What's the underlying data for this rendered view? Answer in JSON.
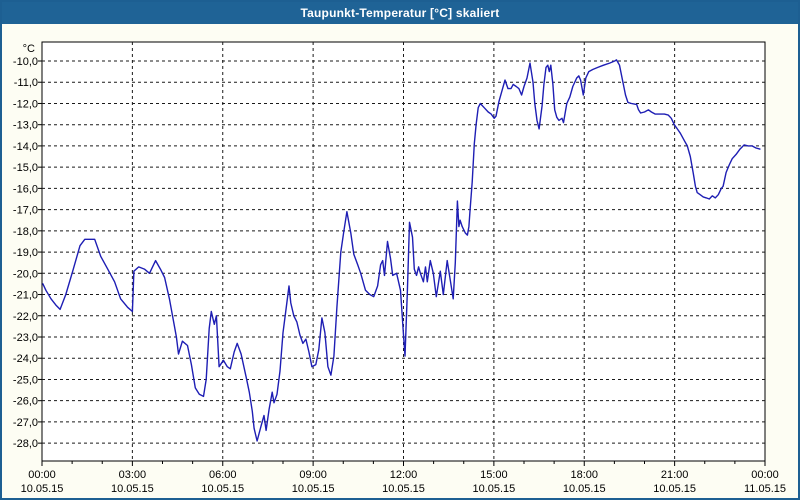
{
  "window": {
    "title": "Taupunkt-Temperatur [°C] skaliert"
  },
  "colors": {
    "titlebar": "#1f6396",
    "frame": "#1d5f92",
    "background": "#fdfdf3",
    "plot_background": "#ffffff",
    "plot_border": "#000000",
    "grid": "#1a1a1a",
    "line": "#1e1eb4",
    "text": "#000000"
  },
  "chart_data": {
    "type": "line",
    "title": "Taupunkt-Temperatur [°C] skaliert",
    "ylabel": "°C",
    "xlabel": "",
    "ylim": [
      -28.9,
      -9.1
    ],
    "xlim_hours": [
      0,
      24
    ],
    "grid": true,
    "legend": false,
    "y_ticks": [
      {
        "value": -10,
        "label": "-10,0"
      },
      {
        "value": -11,
        "label": "-11,0"
      },
      {
        "value": -12,
        "label": "-12,0"
      },
      {
        "value": -13,
        "label": "-13,0"
      },
      {
        "value": -14,
        "label": "-14,0"
      },
      {
        "value": -15,
        "label": "-15,0"
      },
      {
        "value": -16,
        "label": "-16,0"
      },
      {
        "value": -17,
        "label": "-17,0"
      },
      {
        "value": -18,
        "label": "-18,0"
      },
      {
        "value": -19,
        "label": "-19,0"
      },
      {
        "value": -20,
        "label": "-20,0"
      },
      {
        "value": -21,
        "label": "-21,0"
      },
      {
        "value": -22,
        "label": "-22,0"
      },
      {
        "value": -23,
        "label": "-23,0"
      },
      {
        "value": -24,
        "label": "-24,0"
      },
      {
        "value": -25,
        "label": "-25,0"
      },
      {
        "value": -26,
        "label": "-26,0"
      },
      {
        "value": -27,
        "label": "-27,0"
      },
      {
        "value": -28,
        "label": "-28,0"
      }
    ],
    "x_ticks": [
      {
        "hour": 0,
        "time": "00:00",
        "date": "10.05.15"
      },
      {
        "hour": 3,
        "time": "03:00",
        "date": "10.05.15"
      },
      {
        "hour": 6,
        "time": "06:00",
        "date": "10.05.15"
      },
      {
        "hour": 9,
        "time": "09:00",
        "date": "10.05.15"
      },
      {
        "hour": 12,
        "time": "12:00",
        "date": "10.05.15"
      },
      {
        "hour": 15,
        "time": "15:00",
        "date": "10.05.15"
      },
      {
        "hour": 18,
        "time": "18:00",
        "date": "10.05.15"
      },
      {
        "hour": 21,
        "time": "21:00",
        "date": "10.05.15"
      },
      {
        "hour": 24,
        "time": "00:00",
        "date": "11.05.15"
      }
    ],
    "minor_tick_every_hours": 1,
    "series": [
      {
        "name": "Taupunkt-Temperatur",
        "color": "#1e1eb4",
        "points": [
          [
            0.03,
            -20.5
          ],
          [
            0.13,
            -20.8
          ],
          [
            0.3,
            -21.2
          ],
          [
            0.46,
            -21.5
          ],
          [
            0.6,
            -21.7
          ],
          [
            0.79,
            -21.0
          ],
          [
            1.02,
            -19.9
          ],
          [
            1.26,
            -18.7
          ],
          [
            1.42,
            -18.4
          ],
          [
            1.75,
            -18.4
          ],
          [
            1.95,
            -19.2
          ],
          [
            2.18,
            -19.8
          ],
          [
            2.41,
            -20.4
          ],
          [
            2.61,
            -21.2
          ],
          [
            2.84,
            -21.6
          ],
          [
            3.0,
            -21.8
          ],
          [
            3.05,
            -19.9
          ],
          [
            3.21,
            -19.7
          ],
          [
            3.4,
            -19.8
          ],
          [
            3.57,
            -20.0
          ],
          [
            3.77,
            -19.4
          ],
          [
            3.93,
            -19.8
          ],
          [
            4.07,
            -20.2
          ],
          [
            4.23,
            -21.2
          ],
          [
            4.36,
            -22.2
          ],
          [
            4.46,
            -23.0
          ],
          [
            4.53,
            -23.8
          ],
          [
            4.66,
            -23.2
          ],
          [
            4.83,
            -23.4
          ],
          [
            4.96,
            -24.3
          ],
          [
            5.09,
            -25.4
          ],
          [
            5.22,
            -25.7
          ],
          [
            5.36,
            -25.8
          ],
          [
            5.45,
            -25.0
          ],
          [
            5.55,
            -22.6
          ],
          [
            5.62,
            -21.8
          ],
          [
            5.72,
            -22.4
          ],
          [
            5.79,
            -22.0
          ],
          [
            5.88,
            -24.4
          ],
          [
            6.02,
            -24.1
          ],
          [
            6.15,
            -24.4
          ],
          [
            6.25,
            -24.5
          ],
          [
            6.38,
            -23.7
          ],
          [
            6.48,
            -23.3
          ],
          [
            6.61,
            -23.8
          ],
          [
            6.78,
            -24.9
          ],
          [
            6.88,
            -25.6
          ],
          [
            6.98,
            -26.5
          ],
          [
            7.04,
            -27.3
          ],
          [
            7.14,
            -27.9
          ],
          [
            7.27,
            -27.2
          ],
          [
            7.37,
            -26.7
          ],
          [
            7.44,
            -27.4
          ],
          [
            7.54,
            -26.4
          ],
          [
            7.64,
            -25.6
          ],
          [
            7.7,
            -26.1
          ],
          [
            7.8,
            -25.7
          ],
          [
            7.9,
            -24.6
          ],
          [
            8.0,
            -22.8
          ],
          [
            8.1,
            -21.7
          ],
          [
            8.2,
            -20.6
          ],
          [
            8.26,
            -21.4
          ],
          [
            8.36,
            -22.0
          ],
          [
            8.46,
            -22.3
          ],
          [
            8.56,
            -22.9
          ],
          [
            8.66,
            -23.3
          ],
          [
            8.76,
            -23.1
          ],
          [
            8.86,
            -23.7
          ],
          [
            8.96,
            -24.4
          ],
          [
            9.09,
            -24.3
          ],
          [
            9.19,
            -23.6
          ],
          [
            9.29,
            -22.1
          ],
          [
            9.39,
            -22.8
          ],
          [
            9.49,
            -24.4
          ],
          [
            9.59,
            -24.8
          ],
          [
            9.69,
            -23.9
          ],
          [
            9.79,
            -21.6
          ],
          [
            9.92,
            -19.0
          ],
          [
            10.02,
            -18.0
          ],
          [
            10.12,
            -17.1
          ],
          [
            10.25,
            -18.1
          ],
          [
            10.35,
            -19.1
          ],
          [
            10.48,
            -19.6
          ],
          [
            10.58,
            -20.0
          ],
          [
            10.74,
            -20.8
          ],
          [
            10.88,
            -21.0
          ],
          [
            11.01,
            -21.1
          ],
          [
            11.14,
            -20.6
          ],
          [
            11.24,
            -19.6
          ],
          [
            11.31,
            -19.4
          ],
          [
            11.37,
            -20.1
          ],
          [
            11.47,
            -18.5
          ],
          [
            11.57,
            -19.3
          ],
          [
            11.64,
            -20.1
          ],
          [
            11.77,
            -20.0
          ],
          [
            11.9,
            -20.8
          ],
          [
            12.0,
            -22.9
          ],
          [
            12.05,
            -23.9
          ],
          [
            12.13,
            -20.8
          ],
          [
            12.2,
            -17.6
          ],
          [
            12.3,
            -18.3
          ],
          [
            12.36,
            -19.8
          ],
          [
            12.43,
            -20.1
          ],
          [
            12.5,
            -19.7
          ],
          [
            12.56,
            -20.0
          ],
          [
            12.66,
            -20.4
          ],
          [
            12.73,
            -19.7
          ],
          [
            12.79,
            -20.4
          ],
          [
            12.89,
            -19.4
          ],
          [
            12.99,
            -20.0
          ],
          [
            13.09,
            -21.1
          ],
          [
            13.22,
            -19.9
          ],
          [
            13.32,
            -21.0
          ],
          [
            13.45,
            -19.4
          ],
          [
            13.55,
            -20.3
          ],
          [
            13.65,
            -21.2
          ],
          [
            13.72,
            -19.5
          ],
          [
            13.79,
            -16.6
          ],
          [
            13.84,
            -17.8
          ],
          [
            13.88,
            -17.5
          ],
          [
            13.95,
            -17.8
          ],
          [
            14.05,
            -18.1
          ],
          [
            14.12,
            -18.2
          ],
          [
            14.17,
            -17.8
          ],
          [
            14.21,
            -17.0
          ],
          [
            14.28,
            -15.7
          ],
          [
            14.35,
            -13.9
          ],
          [
            14.41,
            -13.0
          ],
          [
            14.48,
            -12.2
          ],
          [
            14.55,
            -12.0
          ],
          [
            14.68,
            -12.2
          ],
          [
            14.81,
            -12.4
          ],
          [
            14.91,
            -12.5
          ],
          [
            15.01,
            -12.7
          ],
          [
            15.07,
            -12.6
          ],
          [
            15.17,
            -11.9
          ],
          [
            15.27,
            -11.4
          ],
          [
            15.37,
            -10.9
          ],
          [
            15.47,
            -11.3
          ],
          [
            15.57,
            -11.3
          ],
          [
            15.64,
            -11.1
          ],
          [
            15.74,
            -11.2
          ],
          [
            15.83,
            -11.3
          ],
          [
            15.92,
            -11.6
          ],
          [
            16.0,
            -11.2
          ],
          [
            16.1,
            -10.8
          ],
          [
            16.2,
            -10.1
          ],
          [
            16.3,
            -11.0
          ],
          [
            16.36,
            -12.0
          ],
          [
            16.43,
            -12.8
          ],
          [
            16.5,
            -13.2
          ],
          [
            16.6,
            -12.1
          ],
          [
            16.66,
            -11.1
          ],
          [
            16.73,
            -10.3
          ],
          [
            16.79,
            -10.2
          ],
          [
            16.84,
            -10.5
          ],
          [
            16.89,
            -10.2
          ],
          [
            16.96,
            -11.1
          ],
          [
            17.02,
            -12.3
          ],
          [
            17.09,
            -12.65
          ],
          [
            17.16,
            -12.8
          ],
          [
            17.26,
            -12.7
          ],
          [
            17.31,
            -12.9
          ],
          [
            17.42,
            -12.0
          ],
          [
            17.52,
            -11.7
          ],
          [
            17.62,
            -11.2
          ],
          [
            17.75,
            -10.8
          ],
          [
            17.82,
            -10.7
          ],
          [
            17.88,
            -10.9
          ],
          [
            17.97,
            -11.6
          ],
          [
            18.05,
            -10.8
          ],
          [
            18.15,
            -10.5
          ],
          [
            18.28,
            -10.4
          ],
          [
            18.45,
            -10.3
          ],
          [
            18.64,
            -10.2
          ],
          [
            18.84,
            -10.1
          ],
          [
            19.01,
            -10.0
          ],
          [
            19.07,
            -9.95
          ],
          [
            19.17,
            -10.2
          ],
          [
            19.27,
            -10.9
          ],
          [
            19.37,
            -11.6
          ],
          [
            19.45,
            -11.95
          ],
          [
            19.57,
            -12.0
          ],
          [
            19.74,
            -12.05
          ],
          [
            19.8,
            -12.3
          ],
          [
            19.87,
            -12.45
          ],
          [
            20.0,
            -12.4
          ],
          [
            20.13,
            -12.3
          ],
          [
            20.23,
            -12.4
          ],
          [
            20.36,
            -12.5
          ],
          [
            20.5,
            -12.5
          ],
          [
            20.66,
            -12.5
          ],
          [
            20.79,
            -12.55
          ],
          [
            20.89,
            -12.7
          ],
          [
            20.99,
            -13.0
          ],
          [
            21.09,
            -13.2
          ],
          [
            21.19,
            -13.4
          ],
          [
            21.32,
            -13.75
          ],
          [
            21.42,
            -14.0
          ],
          [
            21.52,
            -14.5
          ],
          [
            21.62,
            -15.3
          ],
          [
            21.69,
            -15.9
          ],
          [
            21.75,
            -16.2
          ],
          [
            21.85,
            -16.3
          ],
          [
            21.95,
            -16.4
          ],
          [
            22.05,
            -16.45
          ],
          [
            22.15,
            -16.5
          ],
          [
            22.25,
            -16.35
          ],
          [
            22.35,
            -16.45
          ],
          [
            22.45,
            -16.3
          ],
          [
            22.55,
            -16.0
          ],
          [
            22.61,
            -15.9
          ],
          [
            22.71,
            -15.25
          ],
          [
            22.81,
            -14.9
          ],
          [
            22.91,
            -14.6
          ],
          [
            23.04,
            -14.4
          ],
          [
            23.17,
            -14.15
          ],
          [
            23.31,
            -13.95
          ],
          [
            23.44,
            -14.0
          ],
          [
            23.57,
            -14.0
          ],
          [
            23.7,
            -14.1
          ],
          [
            23.83,
            -14.15
          ]
        ]
      }
    ]
  }
}
